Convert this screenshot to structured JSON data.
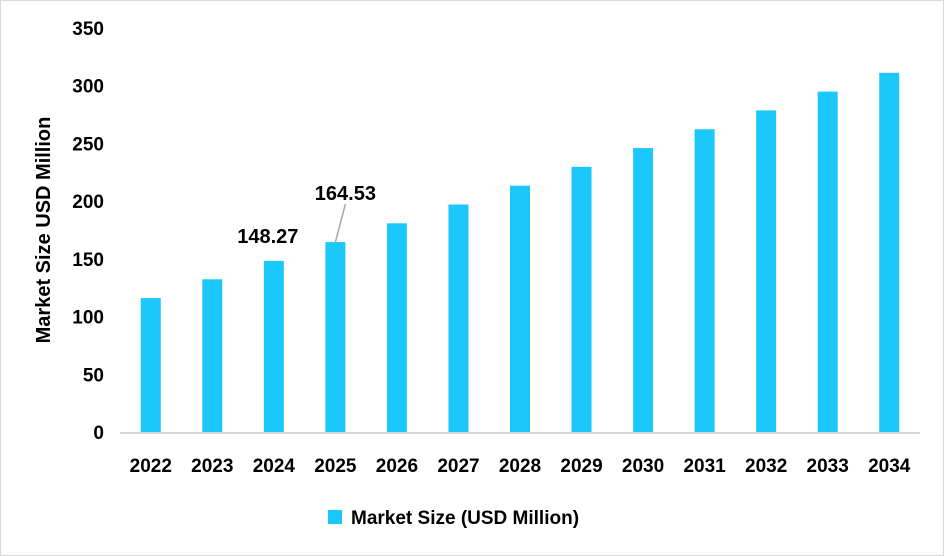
{
  "chart_data": {
    "type": "bar",
    "title": "",
    "xlabel": "",
    "ylabel": "Market Size USD Million",
    "ylim": [
      0,
      350
    ],
    "yticks": [
      0,
      50,
      100,
      150,
      200,
      250,
      300,
      350
    ],
    "grid": false,
    "legend_position": "bottom",
    "bar_color": "#1CC8FB",
    "categories": [
      "2022",
      "2023",
      "2024",
      "2025",
      "2026",
      "2027",
      "2028",
      "2029",
      "2030",
      "2031",
      "2032",
      "2033",
      "2034"
    ],
    "series": [
      {
        "name": "Market Size (USD Million)",
        "values": [
          116.0,
          132.3,
          148.27,
          164.53,
          180.8,
          197.1,
          213.4,
          229.7,
          246.0,
          262.3,
          278.6,
          294.9,
          311.2
        ]
      }
    ],
    "data_labels": [
      {
        "category": "2024",
        "text": "148.27"
      },
      {
        "category": "2025",
        "text": "164.53"
      }
    ]
  }
}
